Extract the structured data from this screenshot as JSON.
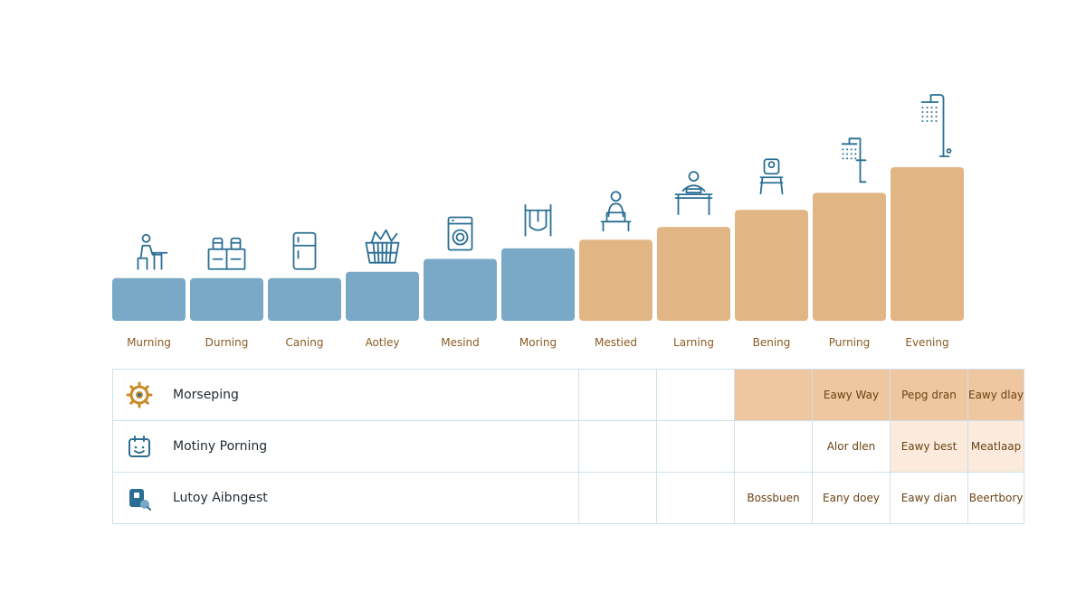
{
  "chart_data": {
    "type": "bar",
    "categories": [
      "Murning",
      "Durning",
      "Caning",
      "Aotley",
      "Mesind",
      "Moring",
      "Mestied",
      "Larning",
      "Bening",
      "Purning",
      "Evening"
    ],
    "values": [
      1.0,
      1.0,
      1.0,
      1.15,
      1.45,
      1.7,
      1.9,
      2.2,
      2.6,
      3.0,
      3.6
    ],
    "ylim": [
      0,
      3.6
    ],
    "grid": false,
    "colors": {
      "cool": "#79a9c6",
      "warm": "#e2b684",
      "label": "#8a5b21"
    },
    "series_color_by_category": [
      "cool",
      "cool",
      "cool",
      "cool",
      "cool",
      "cool",
      "warm",
      "warm",
      "warm",
      "warm",
      "warm"
    ],
    "icons": [
      "desk-worker-icon",
      "storage-jars-icon",
      "refrigerator-icon",
      "laundry-basket-icon",
      "washing-machine-icon",
      "drying-rack-icon",
      "person-at-desk-icon",
      "study-desk-icon",
      "chair-icon",
      "shower-icon",
      "tall-shower-icon"
    ]
  },
  "table": {
    "rows": [
      {
        "label": "Morseping",
        "icon": "gear-icon",
        "cells": [
          "",
          "",
          "",
          "Eawy Way",
          "Pepg dran",
          "Eawy dlay"
        ],
        "fills": [
          "none",
          "none",
          "strong",
          "strong",
          "strong",
          "strong"
        ]
      },
      {
        "label": "Motiny Porning",
        "icon": "calendar-icon",
        "cells": [
          "",
          "",
          "",
          "Alor dlen",
          "Eawy best",
          "Meatlaap"
        ],
        "fills": [
          "none",
          "none",
          "none",
          "none",
          "light",
          "light"
        ]
      },
      {
        "label": "Lutoy Aibngest",
        "icon": "tag-icon",
        "cells": [
          "",
          "",
          "Bossbuen",
          "Eany doey",
          "Eawy dian",
          "Beertbory"
        ],
        "fills": [
          "none",
          "none",
          "none",
          "none",
          "none",
          "none"
        ]
      }
    ]
  }
}
